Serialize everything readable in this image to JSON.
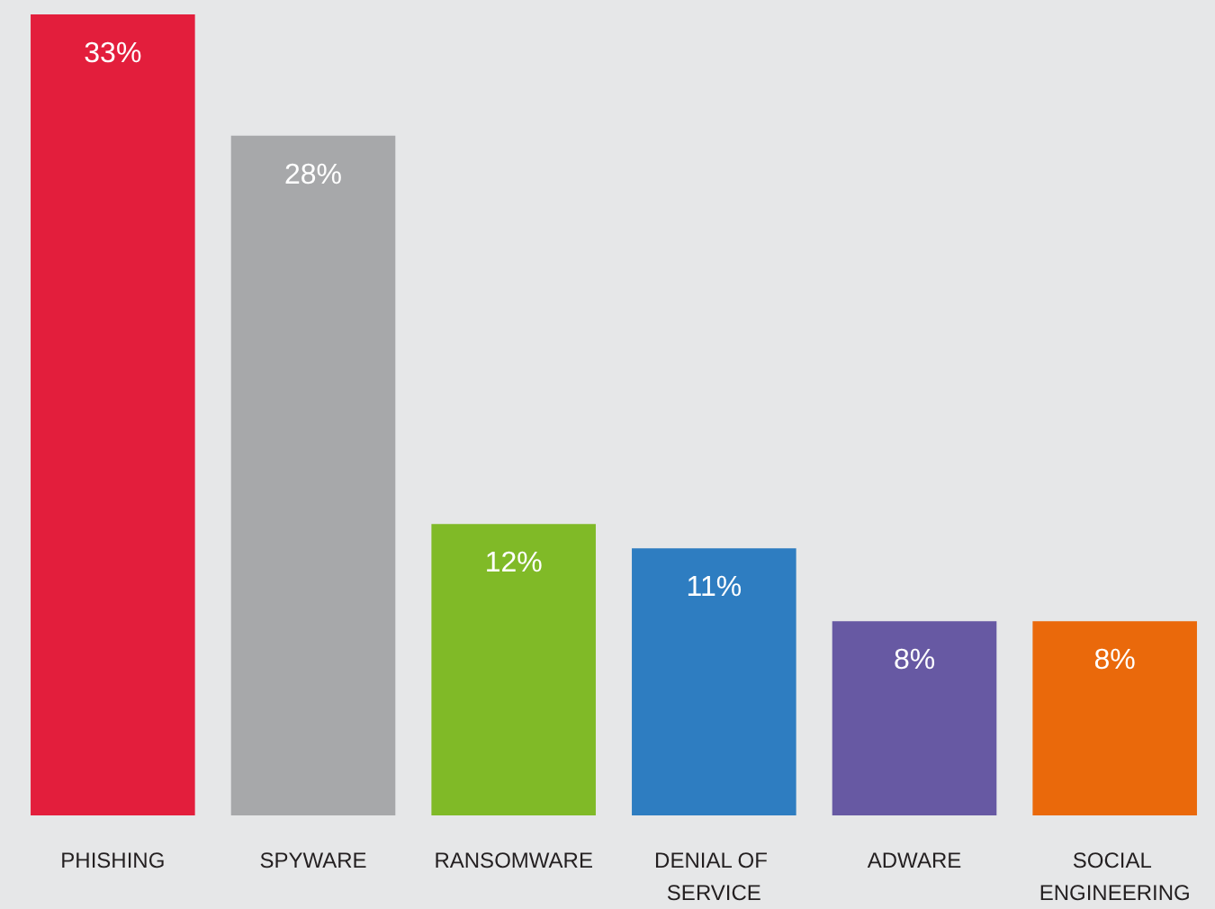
{
  "chart_data": {
    "type": "bar",
    "categories": [
      "PHISHING",
      "SPYWARE",
      "RANSOMWARE",
      "DENIAL OF SERVICE",
      "ADWARE",
      "SOCIAL ENGINEERING"
    ],
    "values": [
      33,
      28,
      12,
      11,
      8,
      8
    ],
    "colors": [
      "#e31e3c",
      "#a7a8aa",
      "#80ba27",
      "#2e7dc1",
      "#6759a3",
      "#ea690b"
    ],
    "value_labels": [
      "33%",
      "28%",
      "12%",
      "11%",
      "8%",
      "8%"
    ]
  }
}
